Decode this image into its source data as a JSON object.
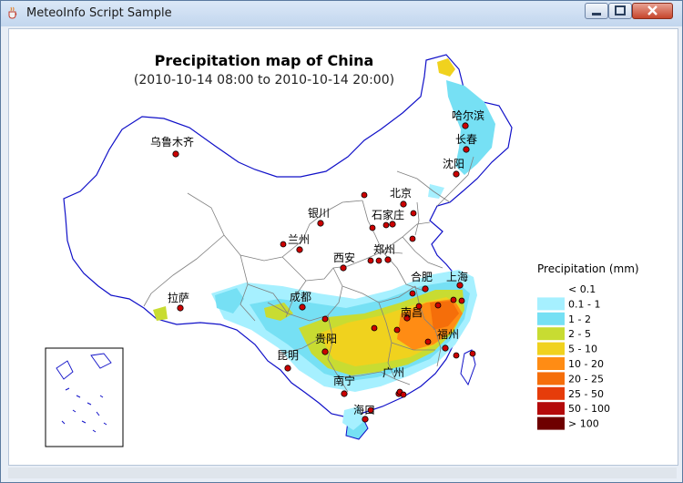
{
  "window": {
    "title": "MeteoInfo Script Sample",
    "controls": [
      "minimize",
      "maximize",
      "close"
    ],
    "icons": {
      "app": "java-cup-icon",
      "minimize": "minimize-icon",
      "maximize": "maximize-icon",
      "close": "close-icon"
    }
  },
  "map": {
    "title": "Precipitation map of China",
    "subtitle": "(2010-10-14 08:00 to 2010-10-14 20:00)",
    "boundary_color": "#1010c8",
    "province_line_color": "#808080",
    "city_marker_color": "#cc0000",
    "cities": [
      {
        "name": "乌鲁木齐"
      },
      {
        "name": "哈尔滨"
      },
      {
        "name": "长春"
      },
      {
        "name": "沈阳"
      },
      {
        "name": "北京"
      },
      {
        "name": "石家庄"
      },
      {
        "name": "银川"
      },
      {
        "name": "兰州"
      },
      {
        "name": "西安"
      },
      {
        "name": "郑州"
      },
      {
        "name": "拉萨"
      },
      {
        "name": "成都"
      },
      {
        "name": "合肥"
      },
      {
        "name": "上海"
      },
      {
        "name": "南昌"
      },
      {
        "name": "贵阳"
      },
      {
        "name": "福州"
      },
      {
        "name": "昆明"
      },
      {
        "name": "广州"
      },
      {
        "name": "南宁"
      },
      {
        "name": "海口"
      }
    ]
  },
  "legend": {
    "title": "Precipitation (mm)",
    "items": [
      {
        "label": "< 0.1",
        "color": "#ffffff"
      },
      {
        "label": "0.1 - 1",
        "color": "#a6f0ff"
      },
      {
        "label": "1 - 2",
        "color": "#76e0f4"
      },
      {
        "label": "2 - 5",
        "color": "#c8dc32"
      },
      {
        "label": "5 - 10",
        "color": "#f0d21e"
      },
      {
        "label": "10 - 20",
        "color": "#ff8c14"
      },
      {
        "label": "20 - 25",
        "color": "#f56e0a"
      },
      {
        "label": "25 - 50",
        "color": "#e63c0a"
      },
      {
        "label": "50 - 100",
        "color": "#b40a0a"
      },
      {
        "label": "> 100",
        "color": "#6e0000"
      }
    ]
  }
}
